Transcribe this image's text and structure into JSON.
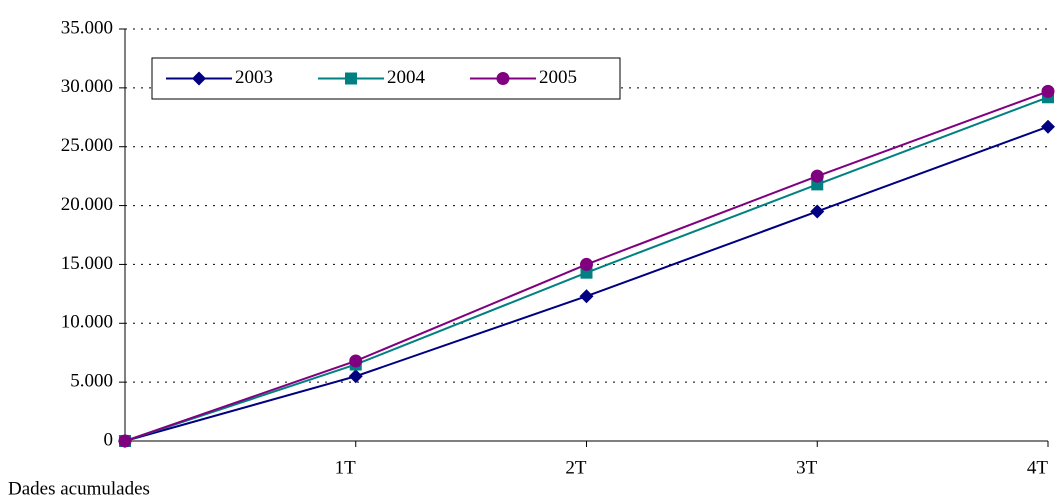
{
  "chart_data": {
    "type": "line",
    "x_label": "Dades acumulades",
    "categories": [
      null,
      "1T",
      "2T",
      "3T",
      "4T"
    ],
    "series": [
      {
        "name": "2003",
        "color": "#000080",
        "marker": "diamond",
        "values": [
          0,
          5500,
          12300,
          19500,
          26700
        ]
      },
      {
        "name": "2004",
        "color": "#008080",
        "marker": "square",
        "values": [
          0,
          6500,
          14300,
          21800,
          29200
        ]
      },
      {
        "name": "2005",
        "color": "#800080",
        "marker": "circle",
        "values": [
          0,
          6800,
          15000,
          22500,
          29700
        ]
      }
    ],
    "ylim": [
      0,
      35000
    ],
    "yticks": [
      0,
      {
        "value": 5000,
        "label": "5.000"
      },
      {
        "value": 10000,
        "label": "10.000"
      },
      {
        "value": 15000,
        "label": "15.000"
      },
      {
        "value": 20000,
        "label": "20.000"
      },
      {
        "value": 25000,
        "label": "25.000"
      },
      {
        "value": 30000,
        "label": "30.000"
      },
      {
        "value": 35000,
        "label": "35.000"
      }
    ],
    "grid": true,
    "legend": "upper left"
  }
}
